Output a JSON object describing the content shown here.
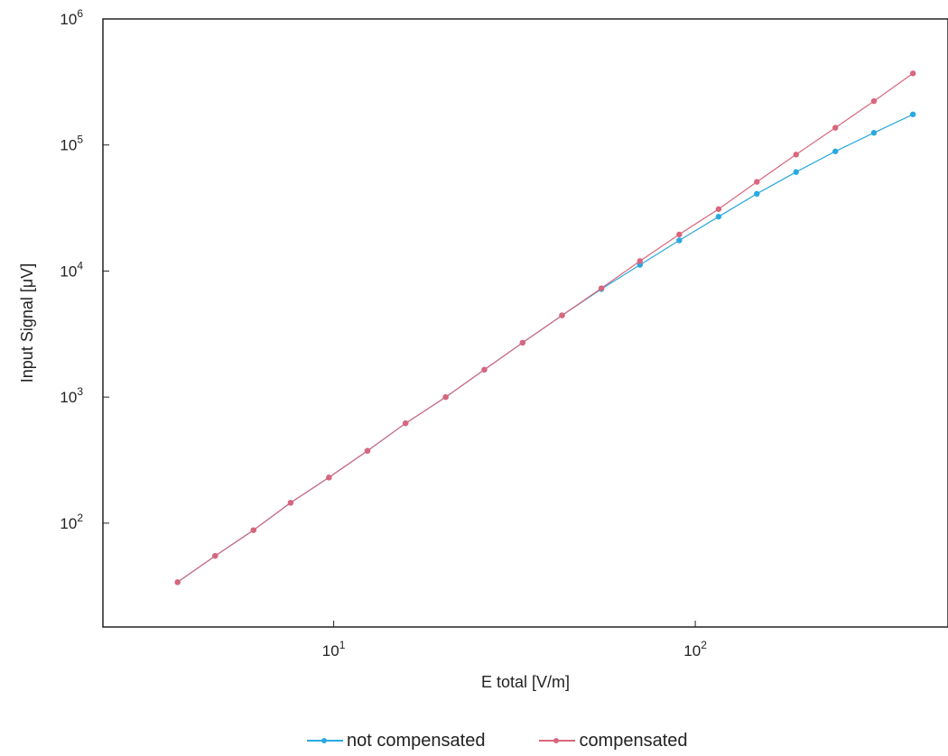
{
  "chart_data": {
    "type": "line",
    "xlabel": "E total [V/m]",
    "ylabel": "Input Signal [μV]",
    "x_scale": "log",
    "y_scale": "log",
    "xlim": [
      2.3,
      500
    ],
    "ylim": [
      15,
      1000000
    ],
    "x_ticks": [
      {
        "base": "10",
        "exp": "1",
        "value": 10
      },
      {
        "base": "10",
        "exp": "2",
        "value": 100
      }
    ],
    "y_ticks": [
      {
        "base": "10",
        "exp": "2",
        "value": 100
      },
      {
        "base": "10",
        "exp": "3",
        "value": 1000
      },
      {
        "base": "10",
        "exp": "4",
        "value": 10000
      },
      {
        "base": "10",
        "exp": "5",
        "value": 100000
      },
      {
        "base": "10",
        "exp": "6",
        "value": 1000000
      }
    ],
    "grid": false,
    "legend_position": "bottom",
    "series": [
      {
        "name": "not compensated",
        "color": "#29a9e0",
        "x": [
          3.7,
          4.7,
          6.0,
          7.6,
          9.7,
          12.4,
          15.8,
          20.4,
          26.1,
          33.3,
          42.8,
          55.0,
          70.3,
          90.3,
          116,
          148,
          190,
          244,
          312,
          400
        ],
        "y": [
          34,
          55,
          88,
          145,
          230,
          375,
          620,
          1000,
          1650,
          2700,
          4450,
          7200,
          11200,
          17500,
          27000,
          41000,
          61000,
          89000,
          125000,
          175000
        ]
      },
      {
        "name": "compensated",
        "color": "#d9667c",
        "x": [
          3.7,
          4.7,
          6.0,
          7.6,
          9.7,
          12.4,
          15.8,
          20.4,
          26.1,
          33.3,
          42.8,
          55.0,
          70.3,
          90.3,
          116,
          148,
          190,
          244,
          312,
          400
        ],
        "y": [
          34,
          55,
          88,
          145,
          230,
          375,
          620,
          1000,
          1650,
          2700,
          4450,
          7300,
          12000,
          19500,
          31000,
          51000,
          84000,
          137000,
          223000,
          370000
        ]
      }
    ]
  }
}
